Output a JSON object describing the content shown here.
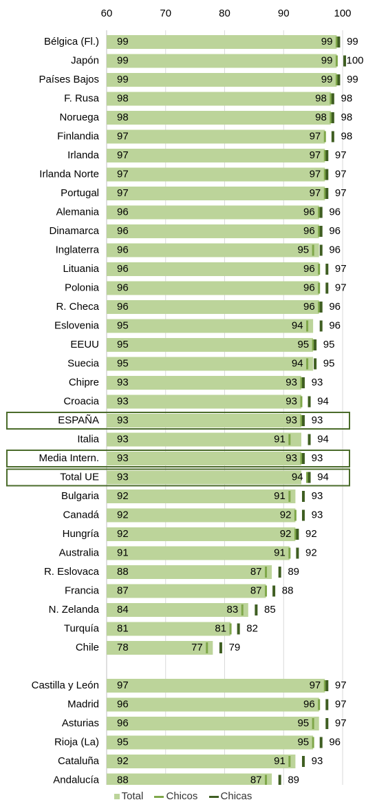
{
  "chart_data": {
    "type": "bar",
    "orientation": "horizontal",
    "xlim": [
      60,
      100
    ],
    "xticks": [
      "60",
      "70",
      "80",
      "90",
      "100"
    ],
    "grid": true,
    "legend_position": "bottom",
    "colors": {
      "total": "#bcd49a",
      "chicos": "#7fa74a",
      "chicas": "#3f5e22",
      "highlight": "#4a6b2a"
    },
    "groups": [
      {
        "rows": [
          {
            "label": "Bélgica (Fl.)",
            "total": 99,
            "chicos": 99,
            "chicas": 99
          },
          {
            "label": "Japón",
            "total": 99,
            "chicos": 99,
            "chicas": 100
          },
          {
            "label": "Países Bajos",
            "total": 99,
            "chicos": 99,
            "chicas": 99
          },
          {
            "label": "F. Rusa",
            "total": 98,
            "chicos": 98,
            "chicas": 98
          },
          {
            "label": "Noruega",
            "total": 98,
            "chicos": 98,
            "chicas": 98
          },
          {
            "label": "Finlandia",
            "total": 97,
            "chicos": 97,
            "chicas": 98
          },
          {
            "label": "Irlanda",
            "total": 97,
            "chicos": 97,
            "chicas": 97
          },
          {
            "label": "Irlanda Norte",
            "total": 97,
            "chicos": 97,
            "chicas": 97
          },
          {
            "label": "Portugal",
            "total": 97,
            "chicos": 97,
            "chicas": 97
          },
          {
            "label": "Alemania",
            "total": 96,
            "chicos": 96,
            "chicas": 96
          },
          {
            "label": "Dinamarca",
            "total": 96,
            "chicos": 96,
            "chicas": 96
          },
          {
            "label": "Inglaterra",
            "total": 96,
            "chicos": 95,
            "chicas": 96
          },
          {
            "label": "Lituania",
            "total": 96,
            "chicos": 96,
            "chicas": 97
          },
          {
            "label": "Polonia",
            "total": 96,
            "chicos": 96,
            "chicas": 97
          },
          {
            "label": "R. Checa",
            "total": 96,
            "chicos": 96,
            "chicas": 96
          },
          {
            "label": "Eslovenia",
            "total": 95,
            "chicos": 94,
            "chicas": 96
          },
          {
            "label": "EEUU",
            "total": 95,
            "chicos": 95,
            "chicas": 95
          },
          {
            "label": "Suecia",
            "total": 95,
            "chicos": 94,
            "chicas": 95
          },
          {
            "label": "Chipre",
            "total": 93,
            "chicos": 93,
            "chicas": 93
          },
          {
            "label": "Croacia",
            "total": 93,
            "chicos": 93,
            "chicas": 94
          },
          {
            "label": "ESPAÑA",
            "total": 93,
            "chicos": 93,
            "chicas": 93,
            "highlight": true
          },
          {
            "label": "Italia",
            "total": 93,
            "chicos": 91,
            "chicas": 94
          },
          {
            "label": "Media Intern.",
            "total": 93,
            "chicos": 93,
            "chicas": 93,
            "highlight": true
          },
          {
            "label": "Total UE",
            "total": 93,
            "chicos": 94,
            "chicas": 94,
            "highlight": true
          },
          {
            "label": "Bulgaria",
            "total": 92,
            "chicos": 91,
            "chicas": 93
          },
          {
            "label": "Canadá",
            "total": 92,
            "chicos": 92,
            "chicas": 93
          },
          {
            "label": "Hungría",
            "total": 92,
            "chicos": 92,
            "chicas": 92
          },
          {
            "label": "Australia",
            "total": 91,
            "chicos": 91,
            "chicas": 92
          },
          {
            "label": "R. Eslovaca",
            "total": 88,
            "chicos": 87,
            "chicas": 89
          },
          {
            "label": "Francia",
            "total": 87,
            "chicos": 87,
            "chicas": 88
          },
          {
            "label": "N. Zelanda",
            "total": 84,
            "chicos": 83,
            "chicas": 85
          },
          {
            "label": "Turquía",
            "total": 81,
            "chicos": 81,
            "chicas": 82
          },
          {
            "label": "Chile",
            "total": 78,
            "chicos": 77,
            "chicas": 79
          }
        ]
      },
      {
        "rows": [
          {
            "label": "Castilla y León",
            "total": 97,
            "chicos": 97,
            "chicas": 97
          },
          {
            "label": "Madrid",
            "total": 96,
            "chicos": 96,
            "chicas": 97
          },
          {
            "label": "Asturias",
            "total": 96,
            "chicos": 95,
            "chicas": 97
          },
          {
            "label": "Rioja (La)",
            "total": 95,
            "chicos": 95,
            "chicas": 96
          },
          {
            "label": "Cataluña",
            "total": 92,
            "chicos": 91,
            "chicas": 93
          },
          {
            "label": "Andalucía",
            "total": 88,
            "chicos": 87,
            "chicas": 89
          }
        ]
      }
    ],
    "legend": {
      "total": "Total",
      "chicos": "Chicos",
      "chicas": "Chicas"
    }
  }
}
